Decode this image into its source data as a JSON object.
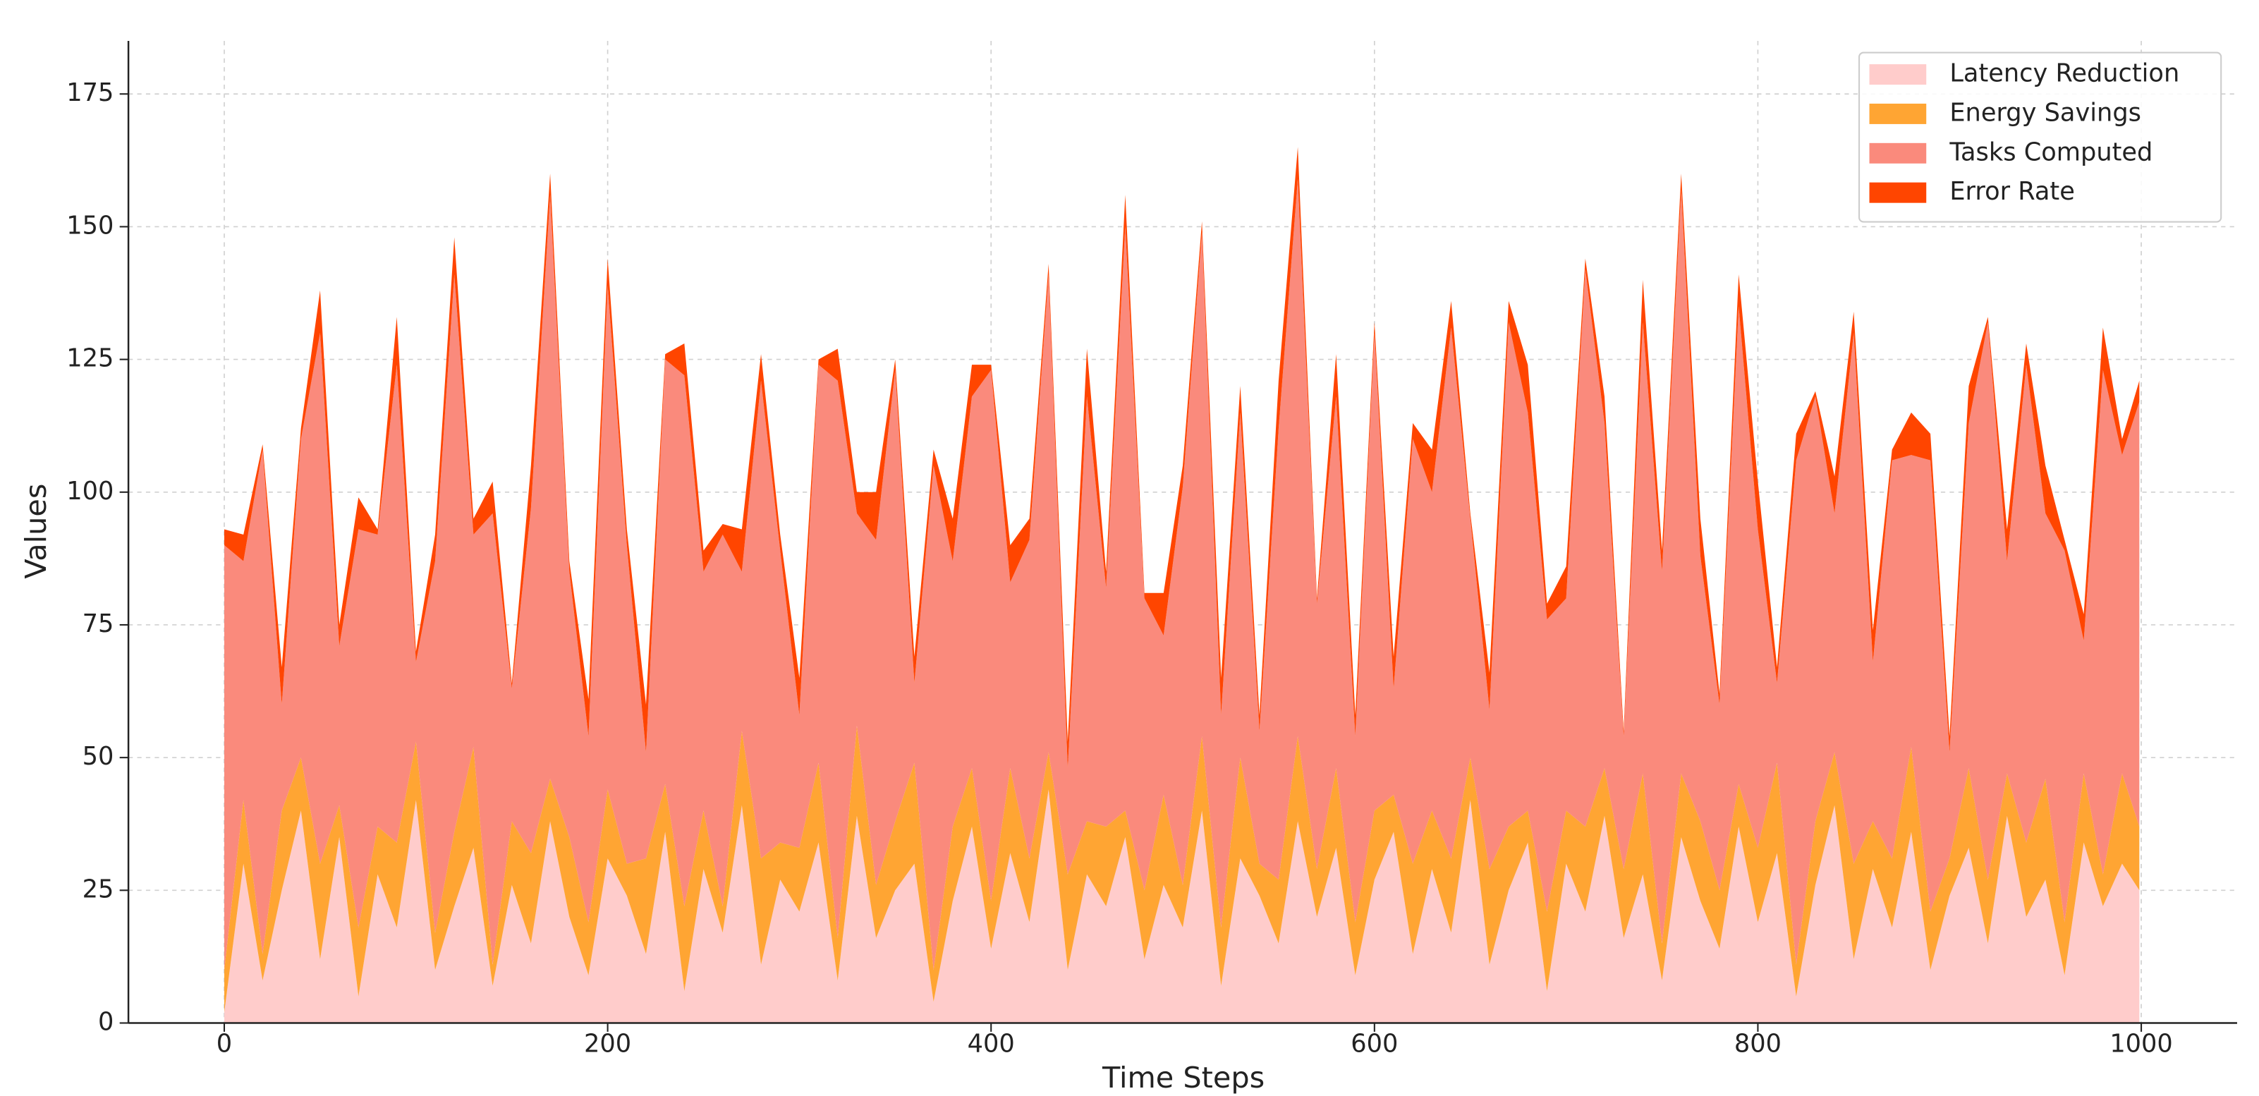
{
  "chart_data": {
    "type": "stacked-area",
    "xlabel": "Time Steps",
    "ylabel": "Values",
    "xlim": [
      -50,
      1050
    ],
    "ylim": [
      0,
      185
    ],
    "xticks": [
      0,
      200,
      400,
      600,
      800,
      1000
    ],
    "yticks": [
      0,
      25,
      50,
      75,
      100,
      125,
      150,
      175
    ],
    "grid": true,
    "legend": "upper right",
    "x": [
      0,
      10,
      20,
      30,
      40,
      50,
      60,
      70,
      80,
      90,
      100,
      110,
      120,
      130,
      140,
      150,
      160,
      170,
      180,
      190,
      200,
      210,
      220,
      230,
      240,
      250,
      260,
      270,
      280,
      290,
      300,
      310,
      320,
      330,
      340,
      350,
      360,
      370,
      380,
      390,
      400,
      410,
      420,
      430,
      440,
      450,
      460,
      470,
      480,
      490,
      500,
      510,
      520,
      530,
      540,
      550,
      560,
      570,
      580,
      590,
      600,
      610,
      620,
      630,
      640,
      650,
      660,
      670,
      680,
      690,
      700,
      710,
      720,
      730,
      740,
      750,
      760,
      770,
      780,
      790,
      800,
      810,
      820,
      830,
      840,
      850,
      860,
      870,
      880,
      890,
      900,
      910,
      920,
      930,
      940,
      950,
      960,
      970,
      980,
      990,
      999
    ],
    "series": [
      {
        "name": "Latency Reduction",
        "color": "#ffcccb",
        "values": [
          2,
          30,
          8,
          25,
          40,
          12,
          35,
          5,
          28,
          18,
          42,
          10,
          22,
          33,
          7,
          26,
          15,
          38,
          20,
          9,
          31,
          24,
          13,
          36,
          6,
          29,
          17,
          41,
          11,
          27,
          21,
          34,
          8,
          39,
          16,
          25,
          30,
          4,
          23,
          37,
          14,
          32,
          19,
          44,
          10,
          28,
          22,
          35,
          12,
          26,
          18,
          40,
          7,
          31,
          24,
          15,
          38,
          20,
          33,
          9,
          27,
          36,
          13,
          29,
          17,
          42,
          11,
          25,
          34,
          6,
          30,
          21,
          39,
          16,
          28,
          8,
          35,
          23,
          14,
          37,
          19,
          32,
          5,
          26,
          41,
          12,
          29,
          18,
          36,
          10,
          24,
          33,
          15,
          39,
          20,
          27,
          9,
          34,
          22,
          30,
          25
        ]
      },
      {
        "name": "Energy Savings",
        "color": "#ffa533",
        "values": [
          8,
          12,
          5,
          15,
          10,
          18,
          6,
          13,
          9,
          16,
          11,
          7,
          14,
          19,
          4,
          12,
          17,
          8,
          15,
          10,
          13,
          6,
          18,
          9,
          16,
          11,
          5,
          14,
          20,
          7,
          12,
          15,
          8,
          17,
          10,
          13,
          19,
          6,
          14,
          11,
          9,
          16,
          12,
          7,
          18,
          10,
          15,
          5,
          13,
          17,
          8,
          14,
          11,
          19,
          6,
          12,
          16,
          9,
          15,
          10,
          13,
          7,
          17,
          11,
          14,
          8,
          18,
          12,
          6,
          15,
          10,
          16,
          9,
          13,
          19,
          7,
          12,
          15,
          11,
          8,
          14,
          17,
          6,
          12,
          10,
          18,
          9,
          13,
          16,
          11,
          7,
          15,
          12,
          8,
          14,
          19,
          10,
          13,
          6,
          17,
          12
        ]
      },
      {
        "name": "Tasks Computed",
        "color": "#fa8a7c",
        "values": [
          80,
          45,
          95,
          20,
          60,
          100,
          30,
          75,
          55,
          90,
          15,
          70,
          105,
          40,
          85,
          25,
          65,
          110,
          50,
          35,
          95,
          60,
          20,
          80,
          100,
          45,
          70,
          30,
          90,
          55,
          25,
          75,
          105,
          40,
          65,
          85,
          15,
          95,
          50,
          70,
          100,
          35,
          60,
          90,
          20,
          80,
          45,
          110,
          55,
          30,
          75,
          95,
          40,
          65,
          25,
          85,
          105,
          50,
          70,
          35,
          90,
          20,
          80,
          60,
          100,
          45,
          30,
          95,
          75,
          55,
          40,
          105,
          65,
          25,
          85,
          70,
          110,
          50,
          35,
          90,
          60,
          15,
          95,
          80,
          45,
          100,
          30,
          75,
          55,
          85,
          20,
          65,
          105,
          40,
          90,
          50,
          70,
          25,
          95,
          60,
          80
        ]
      },
      {
        "name": "Error Rate",
        "color": "#ff4500",
        "values": [
          3,
          5,
          1,
          7,
          2,
          8,
          4,
          6,
          1,
          9,
          2,
          5,
          7,
          3,
          6,
          1,
          8,
          4,
          2,
          7,
          5,
          3,
          9,
          1,
          6,
          4,
          2,
          8,
          5,
          3,
          7,
          1,
          6,
          4,
          9,
          2,
          5,
          3,
          8,
          6,
          1,
          7,
          4,
          2,
          5,
          9,
          3,
          6,
          1,
          8,
          4,
          2,
          7,
          5,
          3,
          9,
          6,
          1,
          8,
          4,
          2,
          6,
          3,
          8,
          5,
          1,
          7,
          4,
          9,
          3,
          6,
          2,
          5,
          1,
          8,
          4,
          3,
          7,
          2,
          6,
          9,
          3,
          5,
          1,
          7,
          4,
          6,
          2,
          8,
          5,
          3,
          7,
          1,
          6,
          4,
          9,
          2,
          5,
          8,
          3,
          4
        ]
      }
    ]
  }
}
